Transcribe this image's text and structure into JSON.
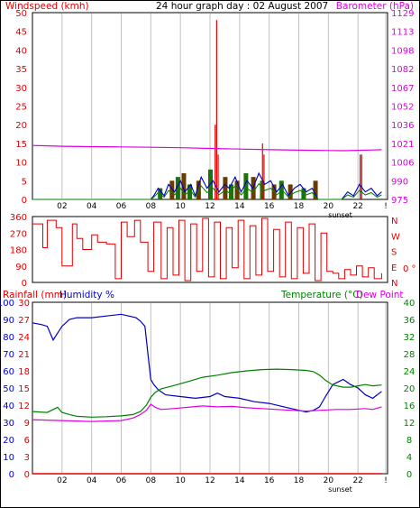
{
  "title": "24 hour graph day : 02 August 2007",
  "colors": {
    "frame": "#000000",
    "grid": "#c0c0c0",
    "red": "#e00000",
    "magenta": "#e000e0",
    "green": "#008000",
    "blue": "#0000c0",
    "dark_green": "#207010",
    "brown": "#6b3a00"
  },
  "x_axis": {
    "ticks": [
      "02",
      "04",
      "06",
      "08",
      "10",
      "12",
      "14",
      "16",
      "18",
      "20",
      "22",
      "!"
    ],
    "sunset_label": "sunset"
  },
  "chart_data": [
    {
      "type": "line",
      "title": "24 hour graph day : 02 August 2007",
      "ylabel": "Windspeed (kmh)",
      "y2label": "Barometer (hPa)",
      "ylim": [
        0,
        50
      ],
      "y_ticks": [
        "0",
        "5",
        "10",
        "15",
        "20",
        "25",
        "30",
        "35",
        "40",
        "45",
        "50"
      ],
      "y2lim": [
        975,
        1129
      ],
      "y2_ticks": [
        "975",
        "990",
        "1006",
        "1021",
        "1036",
        "1052",
        "1067",
        "1082",
        "1098",
        "1113",
        "1129"
      ],
      "x_hours": [
        0,
        24
      ],
      "bar_hours": [
        8.6,
        9.4,
        9.8,
        10.2,
        10.6,
        11.2,
        12.0,
        13.0,
        13.4,
        13.8,
        14.4,
        14.9,
        15.5,
        16.3,
        16.8,
        17.4,
        18.3,
        19.1
      ],
      "bar_values": [
        3,
        5,
        6,
        7,
        4,
        5,
        8,
        6,
        4,
        5,
        7,
        6,
        5,
        4,
        5,
        4,
        3,
        5
      ],
      "gust_hours": [
        12.35,
        12.45,
        12.55,
        15.55,
        15.65,
        22.15,
        22.25
      ],
      "gust_values": [
        20,
        48,
        12,
        15,
        12,
        12,
        12
      ],
      "series": [
        {
          "name": "Barometer",
          "axis": "y2",
          "hours": [
            0,
            1,
            2,
            4,
            6,
            8,
            10,
            12,
            14,
            16,
            18,
            20,
            21,
            22,
            23,
            23.6
          ],
          "values": [
            1019.5,
            1019.2,
            1018.8,
            1018.5,
            1018.3,
            1018.0,
            1017.6,
            1017.0,
            1016.5,
            1016.0,
            1015.6,
            1015.3,
            1015.2,
            1015.5,
            1015.8,
            1016.0
          ]
        },
        {
          "name": "Wind speed",
          "axis": "y",
          "hours": [
            0,
            8.0,
            8.2,
            8.5,
            8.9,
            9.2,
            9.6,
            10.0,
            10.3,
            10.7,
            11.0,
            11.4,
            11.8,
            12.2,
            12.6,
            13.0,
            13.3,
            13.7,
            14.1,
            14.5,
            14.9,
            15.3,
            15.7,
            16.1,
            16.5,
            16.9,
            17.3,
            17.7,
            18.1,
            18.5,
            18.9,
            19.3,
            19.7,
            20.1,
            20.5,
            20.9,
            21.3,
            21.7,
            22.1,
            22.5,
            22.9,
            23.3,
            23.6
          ],
          "values": [
            0,
            0,
            1,
            3,
            1,
            4,
            2,
            5,
            2,
            4,
            1,
            6,
            3,
            5,
            2,
            4,
            3,
            6,
            2,
            5,
            3,
            7,
            4,
            5,
            2,
            4,
            1,
            3,
            4,
            2,
            3,
            0,
            0,
            0,
            0,
            0,
            2,
            1,
            4,
            2,
            3,
            1,
            2
          ]
        }
      ]
    },
    {
      "type": "scatter",
      "title": "",
      "ylabel": "",
      "y_ticks": [
        "0",
        "90",
        "180",
        "270",
        "360"
      ],
      "ylim": [
        0,
        360
      ],
      "right_labels": [
        "N",
        "W",
        "S",
        "E",
        "N"
      ],
      "calm_label": "0 °",
      "series": [
        {
          "name": "Wind direction",
          "hours": [
            0.0,
            0.7,
            1.0,
            1.6,
            2.0,
            2.7,
            3.0,
            3.4,
            4.0,
            4.4,
            5.0,
            5.6,
            6.0,
            6.4,
            6.9,
            7.3,
            7.8,
            8.2,
            8.7,
            9.1,
            9.5,
            9.9,
            10.3,
            10.7,
            11.1,
            11.5,
            11.9,
            12.3,
            12.7,
            13.1,
            13.5,
            13.9,
            14.3,
            14.7,
            15.1,
            15.5,
            15.9,
            16.3,
            16.7,
            17.1,
            17.5,
            17.9,
            18.3,
            18.7,
            19.1,
            19.5,
            19.9,
            20.3,
            20.7,
            21.1,
            21.5,
            21.9,
            22.3,
            22.7,
            23.1,
            23.6
          ],
          "values": [
            320,
            190,
            340,
            300,
            90,
            320,
            240,
            180,
            260,
            220,
            210,
            20,
            330,
            250,
            340,
            220,
            60,
            330,
            20,
            300,
            40,
            340,
            10,
            320,
            60,
            350,
            30,
            330,
            20,
            300,
            80,
            340,
            20,
            310,
            40,
            350,
            60,
            290,
            30,
            330,
            20,
            300,
            50,
            320,
            10,
            270,
            60,
            50,
            20,
            70,
            40,
            90,
            30,
            80,
            20,
            50
          ]
        }
      ]
    },
    {
      "type": "line",
      "title": "",
      "ylabel": "Rainfall (mm)",
      "ylabel2": "Humidity %",
      "y2label": "Temperature (°C)",
      "y2label2": "Dew Point",
      "ylim": [
        0,
        100
      ],
      "left_ticks": [
        "0",
        "10",
        "20",
        "30",
        "40",
        "50",
        "60",
        "70",
        "80",
        "90",
        "100"
      ],
      "inner_ticks": [
        "0",
        "3",
        "6",
        "9",
        "12",
        "15",
        "18",
        "21",
        "24",
        "27",
        "30"
      ],
      "y2lim": [
        0,
        40
      ],
      "right_ticks": [
        "0",
        "4",
        "8",
        "12",
        "16",
        "20",
        "24",
        "28",
        "32",
        "36",
        "40"
      ],
      "series": [
        {
          "name": "Humidity",
          "axis": "y",
          "hours": [
            0,
            0.6,
            1.0,
            1.4,
            1.7,
            2.0,
            2.5,
            3.0,
            4.0,
            5.0,
            6.0,
            6.5,
            7.0,
            7.3,
            7.6,
            7.8,
            8.0,
            8.2,
            8.5,
            9.0,
            10.0,
            11.0,
            12.0,
            12.5,
            13.0,
            14.0,
            15.0,
            16.0,
            17.0,
            18.0,
            18.5,
            19.0,
            19.4,
            19.8,
            20.3,
            21.0,
            21.5,
            22.0,
            22.5,
            23.0,
            23.6
          ],
          "values": [
            88,
            87,
            86,
            78,
            82,
            86,
            90,
            91,
            91,
            92,
            93,
            92,
            91,
            89,
            86,
            70,
            55,
            52,
            49,
            46,
            45,
            44,
            45,
            47,
            45,
            44,
            42,
            41,
            39,
            37,
            36,
            37,
            39,
            45,
            52,
            55,
            52,
            50,
            46,
            44,
            48
          ]
        },
        {
          "name": "Rainfall",
          "axis": "y",
          "hours": [
            0,
            23.6
          ],
          "values": [
            0,
            0
          ]
        },
        {
          "name": "Temperature",
          "axis": "y2",
          "hours": [
            0,
            1.0,
            1.7,
            2.0,
            2.5,
            3.0,
            4.0,
            5.0,
            6.0,
            6.8,
            7.3,
            7.7,
            8.0,
            8.3,
            8.7,
            9.5,
            10.5,
            11.5,
            12.5,
            13.5,
            14.5,
            15.5,
            16.5,
            17.5,
            18.5,
            19.0,
            19.4,
            19.8,
            20.3,
            21.0,
            21.5,
            22.0,
            22.5,
            23.0,
            23.6
          ],
          "values": [
            14.5,
            14.3,
            15.5,
            14.3,
            13.8,
            13.4,
            13.2,
            13.3,
            13.5,
            13.8,
            14.5,
            16.0,
            17.8,
            19.0,
            19.8,
            20.5,
            21.5,
            22.5,
            23.0,
            23.6,
            24.0,
            24.3,
            24.4,
            24.3,
            24.1,
            23.8,
            23.0,
            21.8,
            20.7,
            20.2,
            20.2,
            20.5,
            20.8,
            20.5,
            20.7
          ]
        },
        {
          "name": "Dew point",
          "axis": "y2",
          "hours": [
            0,
            1.0,
            2.0,
            3.0,
            4.0,
            5.0,
            6.0,
            6.8,
            7.3,
            7.7,
            8.0,
            8.3,
            8.7,
            9.5,
            10.5,
            11.5,
            12.5,
            13.5,
            14.5,
            15.5,
            16.5,
            17.5,
            18.5,
            19.5,
            20.5,
            21.5,
            22.5,
            23.0,
            23.6
          ],
          "values": [
            12.6,
            12.5,
            12.4,
            12.3,
            12.2,
            12.3,
            12.4,
            13.0,
            13.8,
            14.8,
            16.2,
            15.5,
            15.0,
            15.2,
            15.5,
            15.8,
            15.6,
            15.7,
            15.4,
            15.2,
            15.0,
            14.8,
            14.6,
            14.8,
            15.0,
            15.0,
            15.2,
            15.0,
            15.6
          ]
        }
      ]
    }
  ],
  "panel1": {
    "left_label": "Windspeed (kmh)",
    "right_label": "Barometer (hPa)",
    "left_ticks": [
      "0",
      "5",
      "10",
      "15",
      "20",
      "25",
      "30",
      "35",
      "40",
      "45",
      "50"
    ],
    "right_ticks": [
      "975",
      "990",
      "1006",
      "1021",
      "1036",
      "1052",
      "1067",
      "1082",
      "1098",
      "1113",
      "1129"
    ]
  },
  "panel2": {
    "left_ticks": [
      "0",
      "90",
      "180",
      "270",
      "360"
    ],
    "compass": [
      "N",
      "W",
      "S",
      "E",
      "N"
    ],
    "calm_label": "0 °"
  },
  "panel3": {
    "rain_label": "Rainfall (mm)",
    "humidity_label": "Humidity %",
    "temp_label": "Temperature (°C)",
    "dew_label": "Dew Point",
    "humidity_ticks": [
      "0",
      "10",
      "20",
      "30",
      "40",
      "50",
      "60",
      "70",
      "80",
      "90",
      "100"
    ],
    "rain_ticks": [
      "0",
      "3",
      "6",
      "9",
      "12",
      "15",
      "18",
      "21",
      "24",
      "27",
      "30"
    ],
    "temp_ticks": [
      "0",
      "4",
      "8",
      "12",
      "16",
      "20",
      "24",
      "28",
      "32",
      "36",
      "40"
    ]
  }
}
